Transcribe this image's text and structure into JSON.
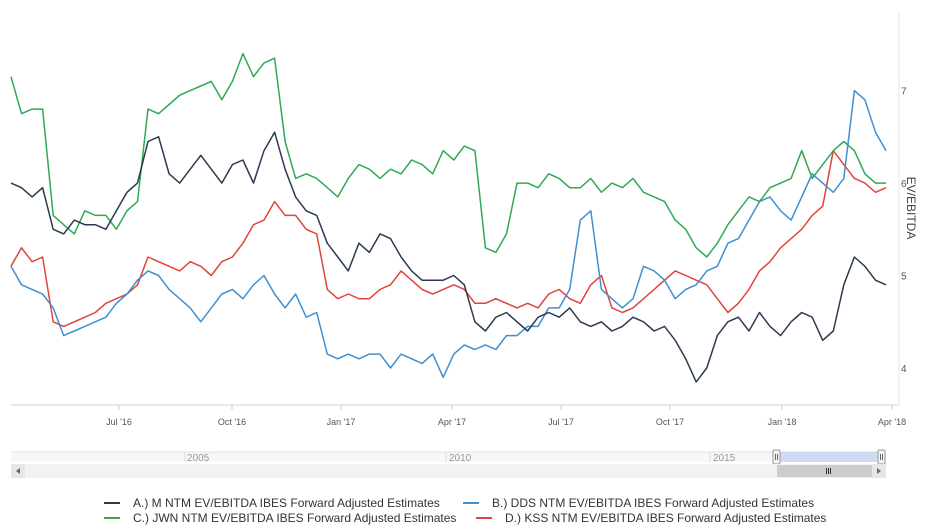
{
  "chart_data": {
    "type": "line",
    "ylabel": "EV/EBITDA",
    "ylim": [
      3.6,
      7.85
    ],
    "y_ticks": [
      "4",
      "5",
      "6",
      "7"
    ],
    "x_ticks": [
      "Jul '16",
      "Oct '16",
      "Jan '17",
      "Apr '17",
      "Jul '17",
      "Oct '17",
      "Jan '18",
      "Apr '18"
    ],
    "grid": false,
    "legend_position": "bottom",
    "navigator_labels": [
      "2005",
      "2010",
      "2015"
    ],
    "series": [
      {
        "name": "A.) M NTM EV/EBITDA IBES Forward Adjusted Estimates",
        "color": "#2b3a4f",
        "values": [
          6.0,
          5.95,
          5.85,
          5.95,
          5.5,
          5.45,
          5.6,
          5.55,
          5.55,
          5.5,
          5.7,
          5.9,
          6.0,
          6.45,
          6.5,
          6.1,
          6.0,
          6.15,
          6.3,
          6.15,
          6.0,
          6.2,
          6.25,
          6.0,
          6.35,
          6.55,
          6.15,
          5.85,
          5.7,
          5.65,
          5.35,
          5.2,
          5.05,
          5.35,
          5.25,
          5.45,
          5.4,
          5.2,
          5.05,
          4.95,
          4.95,
          4.95,
          5.0,
          4.9,
          4.5,
          4.4,
          4.55,
          4.6,
          4.5,
          4.4,
          4.55,
          4.6,
          4.55,
          4.65,
          4.5,
          4.45,
          4.5,
          4.4,
          4.45,
          4.55,
          4.5,
          4.4,
          4.45,
          4.3,
          4.1,
          3.85,
          4.0,
          4.35,
          4.5,
          4.55,
          4.4,
          4.6,
          4.45,
          4.35,
          4.5,
          4.6,
          4.55,
          4.3,
          4.4,
          4.9,
          5.2,
          5.1,
          4.95,
          4.9
        ]
      },
      {
        "name": "B.) DDS NTM EV/EBITDA IBES Forward Adjusted Estimates",
        "color": "#3f8fd2",
        "values": [
          5.1,
          4.9,
          4.85,
          4.8,
          4.65,
          4.35,
          4.4,
          4.45,
          4.5,
          4.55,
          4.7,
          4.8,
          4.95,
          5.05,
          5.0,
          4.85,
          4.75,
          4.65,
          4.5,
          4.65,
          4.8,
          4.85,
          4.75,
          4.9,
          5.0,
          4.8,
          4.65,
          4.8,
          4.55,
          4.6,
          4.15,
          4.1,
          4.15,
          4.1,
          4.15,
          4.15,
          4.0,
          4.15,
          4.1,
          4.05,
          4.15,
          3.9,
          4.15,
          4.25,
          4.2,
          4.25,
          4.2,
          4.35,
          4.35,
          4.45,
          4.45,
          4.65,
          4.65,
          4.85,
          5.6,
          5.7,
          4.85,
          4.75,
          4.65,
          4.75,
          5.1,
          5.05,
          4.95,
          4.75,
          4.85,
          4.9,
          5.05,
          5.1,
          5.35,
          5.4,
          5.6,
          5.8,
          5.85,
          5.7,
          5.6,
          5.85,
          6.1,
          6.0,
          5.9,
          6.05,
          7.0,
          6.9,
          6.55,
          6.35
        ]
      },
      {
        "name": "C.) JWN NTM EV/EBITDA IBES Forward Adjusted Estimates",
        "color": "#2eaa55",
        "values": [
          7.15,
          6.75,
          6.8,
          6.8,
          5.65,
          5.55,
          5.45,
          5.7,
          5.65,
          5.65,
          5.5,
          5.7,
          5.8,
          6.8,
          6.75,
          6.85,
          6.95,
          7.0,
          7.05,
          7.1,
          6.9,
          7.1,
          7.4,
          7.15,
          7.3,
          7.35,
          6.45,
          6.05,
          6.1,
          6.05,
          5.95,
          5.85,
          6.05,
          6.2,
          6.15,
          6.05,
          6.15,
          6.1,
          6.25,
          6.2,
          6.1,
          6.35,
          6.25,
          6.4,
          6.35,
          5.3,
          5.25,
          5.45,
          6.0,
          6.0,
          5.95,
          6.1,
          6.05,
          5.95,
          5.95,
          6.05,
          5.9,
          6.0,
          5.95,
          6.05,
          5.9,
          5.85,
          5.8,
          5.6,
          5.5,
          5.3,
          5.2,
          5.35,
          5.55,
          5.7,
          5.85,
          5.8,
          5.95,
          6.0,
          6.05,
          6.35,
          6.05,
          6.2,
          6.35,
          6.45,
          6.35,
          6.1,
          6.0,
          6.0
        ]
      },
      {
        "name": "D.) KSS NTM EV/EBITDA IBES Forward Adjusted Estimates",
        "color": "#e0443a",
        "values": [
          5.1,
          5.3,
          5.15,
          5.2,
          4.5,
          4.45,
          4.5,
          4.55,
          4.6,
          4.7,
          4.75,
          4.8,
          4.9,
          5.2,
          5.15,
          5.1,
          5.05,
          5.15,
          5.1,
          5.0,
          5.15,
          5.2,
          5.35,
          5.55,
          5.6,
          5.8,
          5.65,
          5.65,
          5.5,
          5.45,
          4.85,
          4.75,
          4.8,
          4.75,
          4.75,
          4.85,
          4.9,
          5.05,
          4.95,
          4.85,
          4.8,
          4.85,
          4.9,
          4.85,
          4.7,
          4.7,
          4.75,
          4.7,
          4.65,
          4.7,
          4.65,
          4.8,
          4.85,
          4.75,
          4.7,
          4.9,
          5.0,
          4.65,
          4.6,
          4.65,
          4.75,
          4.85,
          4.95,
          5.05,
          5.0,
          4.95,
          4.9,
          4.75,
          4.6,
          4.7,
          4.85,
          5.05,
          5.15,
          5.3,
          5.4,
          5.5,
          5.65,
          5.75,
          6.35,
          6.2,
          6.05,
          6.0,
          5.9,
          5.95
        ]
      }
    ]
  }
}
